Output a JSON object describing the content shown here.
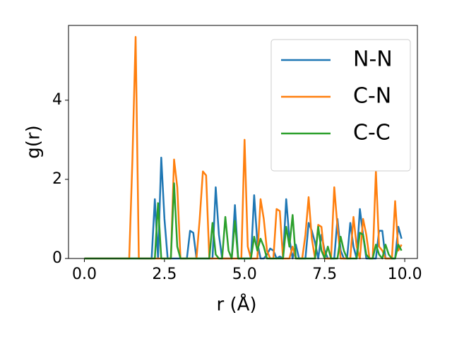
{
  "chart_data": {
    "type": "line",
    "xlabel": "r (Å)",
    "ylabel": "g(r)",
    "x": [
      0.0,
      0.1,
      0.2,
      0.3,
      0.4,
      0.5,
      0.6,
      0.7,
      0.8,
      0.9,
      1.0,
      1.1,
      1.2,
      1.3,
      1.4,
      1.5,
      1.6,
      1.7,
      1.8,
      1.9,
      2.0,
      2.1,
      2.2,
      2.3,
      2.4,
      2.5,
      2.6,
      2.7,
      2.8,
      2.9,
      3.0,
      3.1,
      3.2,
      3.3,
      3.4,
      3.5,
      3.6,
      3.7,
      3.8,
      3.9,
      4.0,
      4.1,
      4.2,
      4.3,
      4.4,
      4.5,
      4.6,
      4.7,
      4.8,
      4.9,
      5.0,
      5.1,
      5.2,
      5.3,
      5.4,
      5.5,
      5.6,
      5.7,
      5.8,
      5.9,
      6.0,
      6.1,
      6.2,
      6.3,
      6.4,
      6.5,
      6.6,
      6.7,
      6.8,
      6.9,
      7.0,
      7.1,
      7.2,
      7.3,
      7.4,
      7.5,
      7.6,
      7.7,
      7.8,
      7.9,
      8.0,
      8.1,
      8.2,
      8.3,
      8.4,
      8.5,
      8.6,
      8.7,
      8.8,
      8.9,
      9.0,
      9.1,
      9.2,
      9.3,
      9.4,
      9.5,
      9.6,
      9.7,
      9.8,
      9.9
    ],
    "series": [
      {
        "name": "N-N",
        "color": "#1f77b4",
        "values": [
          0,
          0,
          0,
          0,
          0,
          0,
          0,
          0,
          0,
          0,
          0,
          0,
          0,
          0,
          0,
          0,
          0,
          0,
          0,
          0,
          0,
          0,
          1.5,
          0,
          2.55,
          1.0,
          0,
          0,
          0,
          0,
          0,
          0,
          0,
          0.7,
          0.65,
          0,
          0,
          0,
          0,
          0,
          0,
          1.8,
          0.6,
          0,
          0,
          0,
          0,
          1.35,
          0,
          0,
          0,
          0,
          0,
          1.6,
          0.4,
          0,
          0,
          0.1,
          0.25,
          0.2,
          0,
          0.05,
          0,
          1.5,
          0.5,
          0,
          0.35,
          0,
          0,
          0,
          0.9,
          0.7,
          0.4,
          0,
          0.6,
          0.2,
          0,
          0,
          0,
          1.0,
          0.2,
          0,
          0,
          0.9,
          0.3,
          0,
          1.25,
          0.6,
          0,
          0,
          0,
          0,
          0.7,
          0.7,
          0,
          0,
          0,
          0,
          0.8,
          0.5
        ]
      },
      {
        "name": "C-N",
        "color": "#ff7f0e",
        "values": [
          0,
          0,
          0,
          0,
          0,
          0,
          0,
          0,
          0,
          0,
          0,
          0,
          0,
          0,
          0,
          2.5,
          5.6,
          0,
          0,
          0,
          0,
          0,
          0,
          0,
          0,
          0,
          0,
          0,
          2.5,
          1.8,
          0,
          0,
          0,
          0,
          0,
          0,
          1.0,
          2.2,
          2.1,
          0,
          0,
          0,
          0,
          0,
          0,
          0,
          0,
          0,
          0,
          0,
          3.0,
          0.3,
          0,
          0,
          0,
          1.5,
          1.0,
          0.2,
          0,
          0,
          1.25,
          1.2,
          0,
          0,
          0,
          0.3,
          0,
          0,
          0,
          0.6,
          1.55,
          0.5,
          0,
          0.85,
          0.8,
          0,
          0,
          0,
          1.8,
          0.8,
          0,
          0,
          0,
          0,
          1.05,
          0.3,
          0,
          1.0,
          0.6,
          0,
          0,
          2.2,
          0.3,
          0.2,
          0,
          0,
          0,
          1.45,
          0.2,
          0.35
        ]
      },
      {
        "name": "C-C",
        "color": "#2ca02c",
        "values": [
          0,
          0,
          0,
          0,
          0,
          0,
          0,
          0,
          0,
          0,
          0,
          0,
          0,
          0,
          0,
          0,
          0,
          0,
          0,
          0,
          0,
          0,
          0,
          1.4,
          0,
          0,
          0,
          0,
          1.9,
          0.3,
          0,
          0,
          0,
          0,
          0,
          0,
          0,
          0,
          0,
          0,
          0.9,
          0.1,
          0,
          0,
          1.05,
          0.2,
          0,
          0.95,
          0,
          0,
          0,
          0,
          0,
          0.55,
          0.2,
          0.5,
          0.3,
          0,
          0,
          0,
          0,
          0,
          0,
          0.8,
          0.3,
          1.1,
          0,
          0,
          0,
          0,
          0,
          0,
          0,
          0.8,
          0.2,
          0,
          0.3,
          0,
          0,
          0,
          0.55,
          0.2,
          0,
          0,
          0,
          0,
          0.65,
          0.6,
          0.1,
          0,
          0,
          0.35,
          0.1,
          0,
          0.35,
          0.1,
          0,
          0,
          0.35,
          0.2
        ]
      }
    ],
    "xlim": [
      -0.495,
      10.395
    ],
    "ylim": [
      0,
      5.89
    ],
    "xticks": [
      {
        "value": 0,
        "label": "0.0"
      },
      {
        "value": 2.5,
        "label": "2.5"
      },
      {
        "value": 5,
        "label": "5.0"
      },
      {
        "value": 7.5,
        "label": "7.5"
      },
      {
        "value": 10,
        "label": "10.0"
      }
    ],
    "yticks": [
      0,
      2,
      4
    ],
    "grid": false,
    "legend": "upper right"
  }
}
